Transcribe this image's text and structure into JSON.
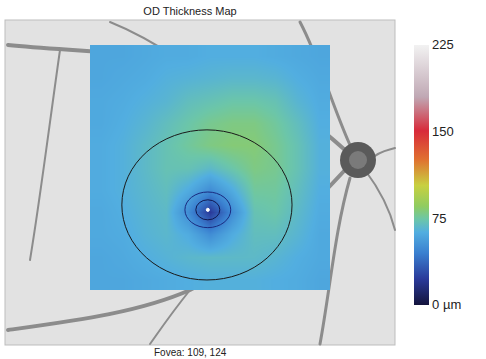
{
  "chart_data": {
    "type": "heatmap",
    "title": "OD Thickness Map",
    "annotation": "Fovea: 109, 124",
    "cells": [
      [
        60,
        60,
        61,
        62,
        62,
        63,
        63,
        63,
        62,
        61,
        60
      ],
      [
        60,
        61,
        62,
        64,
        65,
        66,
        67,
        67,
        66,
        63,
        61
      ],
      [
        61,
        62,
        64,
        66,
        70,
        72,
        74,
        74,
        72,
        66,
        62
      ],
      [
        61,
        63,
        66,
        70,
        74,
        78,
        80,
        80,
        76,
        70,
        63
      ],
      [
        62,
        64,
        68,
        72,
        76,
        80,
        82,
        82,
        78,
        72,
        64
      ],
      [
        62,
        64,
        68,
        72,
        72,
        68,
        74,
        80,
        78,
        72,
        64
      ],
      [
        62,
        64,
        67,
        70,
        62,
        50,
        62,
        76,
        76,
        70,
        63
      ],
      [
        61,
        63,
        66,
        68,
        50,
        22,
        50,
        72,
        74,
        68,
        62
      ],
      [
        61,
        62,
        65,
        67,
        62,
        50,
        62,
        70,
        70,
        66,
        61
      ],
      [
        60,
        61,
        63,
        65,
        67,
        68,
        68,
        68,
        66,
        63,
        61
      ],
      [
        60,
        60,
        61,
        62,
        63,
        64,
        64,
        64,
        63,
        62,
        60
      ]
    ],
    "colorbar_range": [
      0,
      225
    ],
    "colorbar_ticks": [
      {
        "value": 0,
        "label": "0 µm"
      },
      75,
      150,
      225
    ],
    "tick_labels": false
  }
}
